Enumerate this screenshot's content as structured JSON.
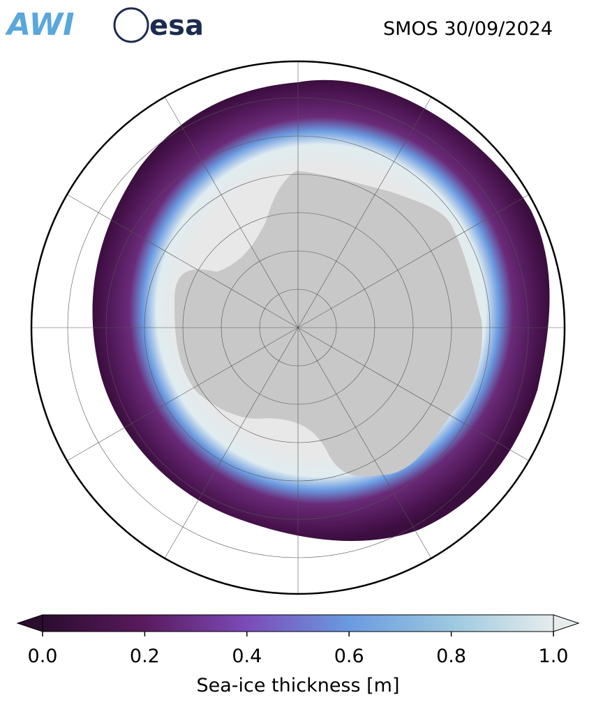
{
  "header": {
    "logos": [
      "AWI",
      "esa"
    ],
    "title": "SMOS 30/09/2024"
  },
  "colorbar": {
    "label": "Sea-ice thickness [m]",
    "range": [
      0,
      1
    ],
    "ticks": [
      {
        "value": 0,
        "label": "0.0"
      },
      {
        "value": 0.2,
        "label": "0.2"
      },
      {
        "value": 0.4,
        "label": "0.4"
      },
      {
        "value": 0.6,
        "label": "0.6"
      },
      {
        "value": 0.8,
        "label": "0.8"
      },
      {
        "value": 1,
        "label": "1.0"
      }
    ],
    "colors": [
      "#2b0d2e",
      "#5a1a5e",
      "#7b4bb8",
      "#6a9ae0",
      "#9cc8e0",
      "#e6ecec"
    ]
  }
}
